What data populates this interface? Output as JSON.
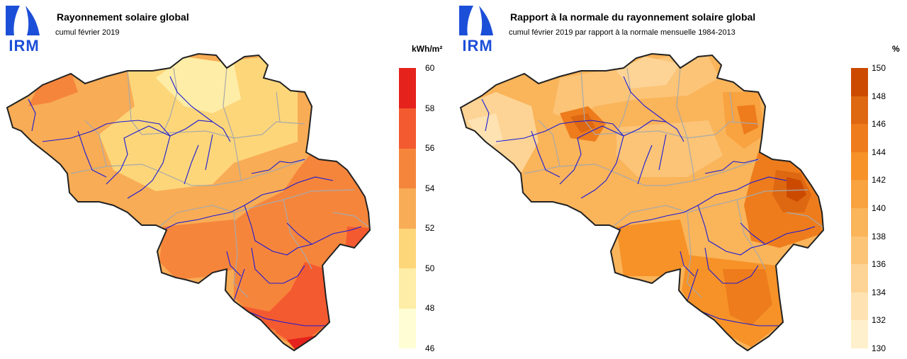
{
  "left_panel": {
    "title": "Rayonnement solaire global",
    "subtitle": "cumul février 2019",
    "unit": "kWh/m²",
    "logo_text": "IRM",
    "legend": {
      "ticks": [
        "60",
        "58",
        "56",
        "54",
        "52",
        "50",
        "48",
        "46"
      ],
      "colors": [
        "#e5221c",
        "#f45a2f",
        "#f6853c",
        "#f8ac55",
        "#fdd67a",
        "#feeda6",
        "#fffdd4"
      ]
    }
  },
  "right_panel": {
    "title": "Rapport à la normale du rayonnement solaire global",
    "subtitle": "cumul février 2019 par rapport à la normale mensuelle 1984-2013",
    "unit": "%",
    "logo_text": "IRM",
    "legend": {
      "ticks": [
        "150",
        "148",
        "146",
        "144",
        "142",
        "140",
        "138",
        "136",
        "134",
        "132",
        "130"
      ],
      "colors": [
        "#cc4a00",
        "#de6711",
        "#ee7c1c",
        "#f69228",
        "#f8a240",
        "#fab45a",
        "#fcc477",
        "#fdd495",
        "#fee2b2",
        "#fff0cd",
        "#fffde0"
      ]
    }
  }
}
